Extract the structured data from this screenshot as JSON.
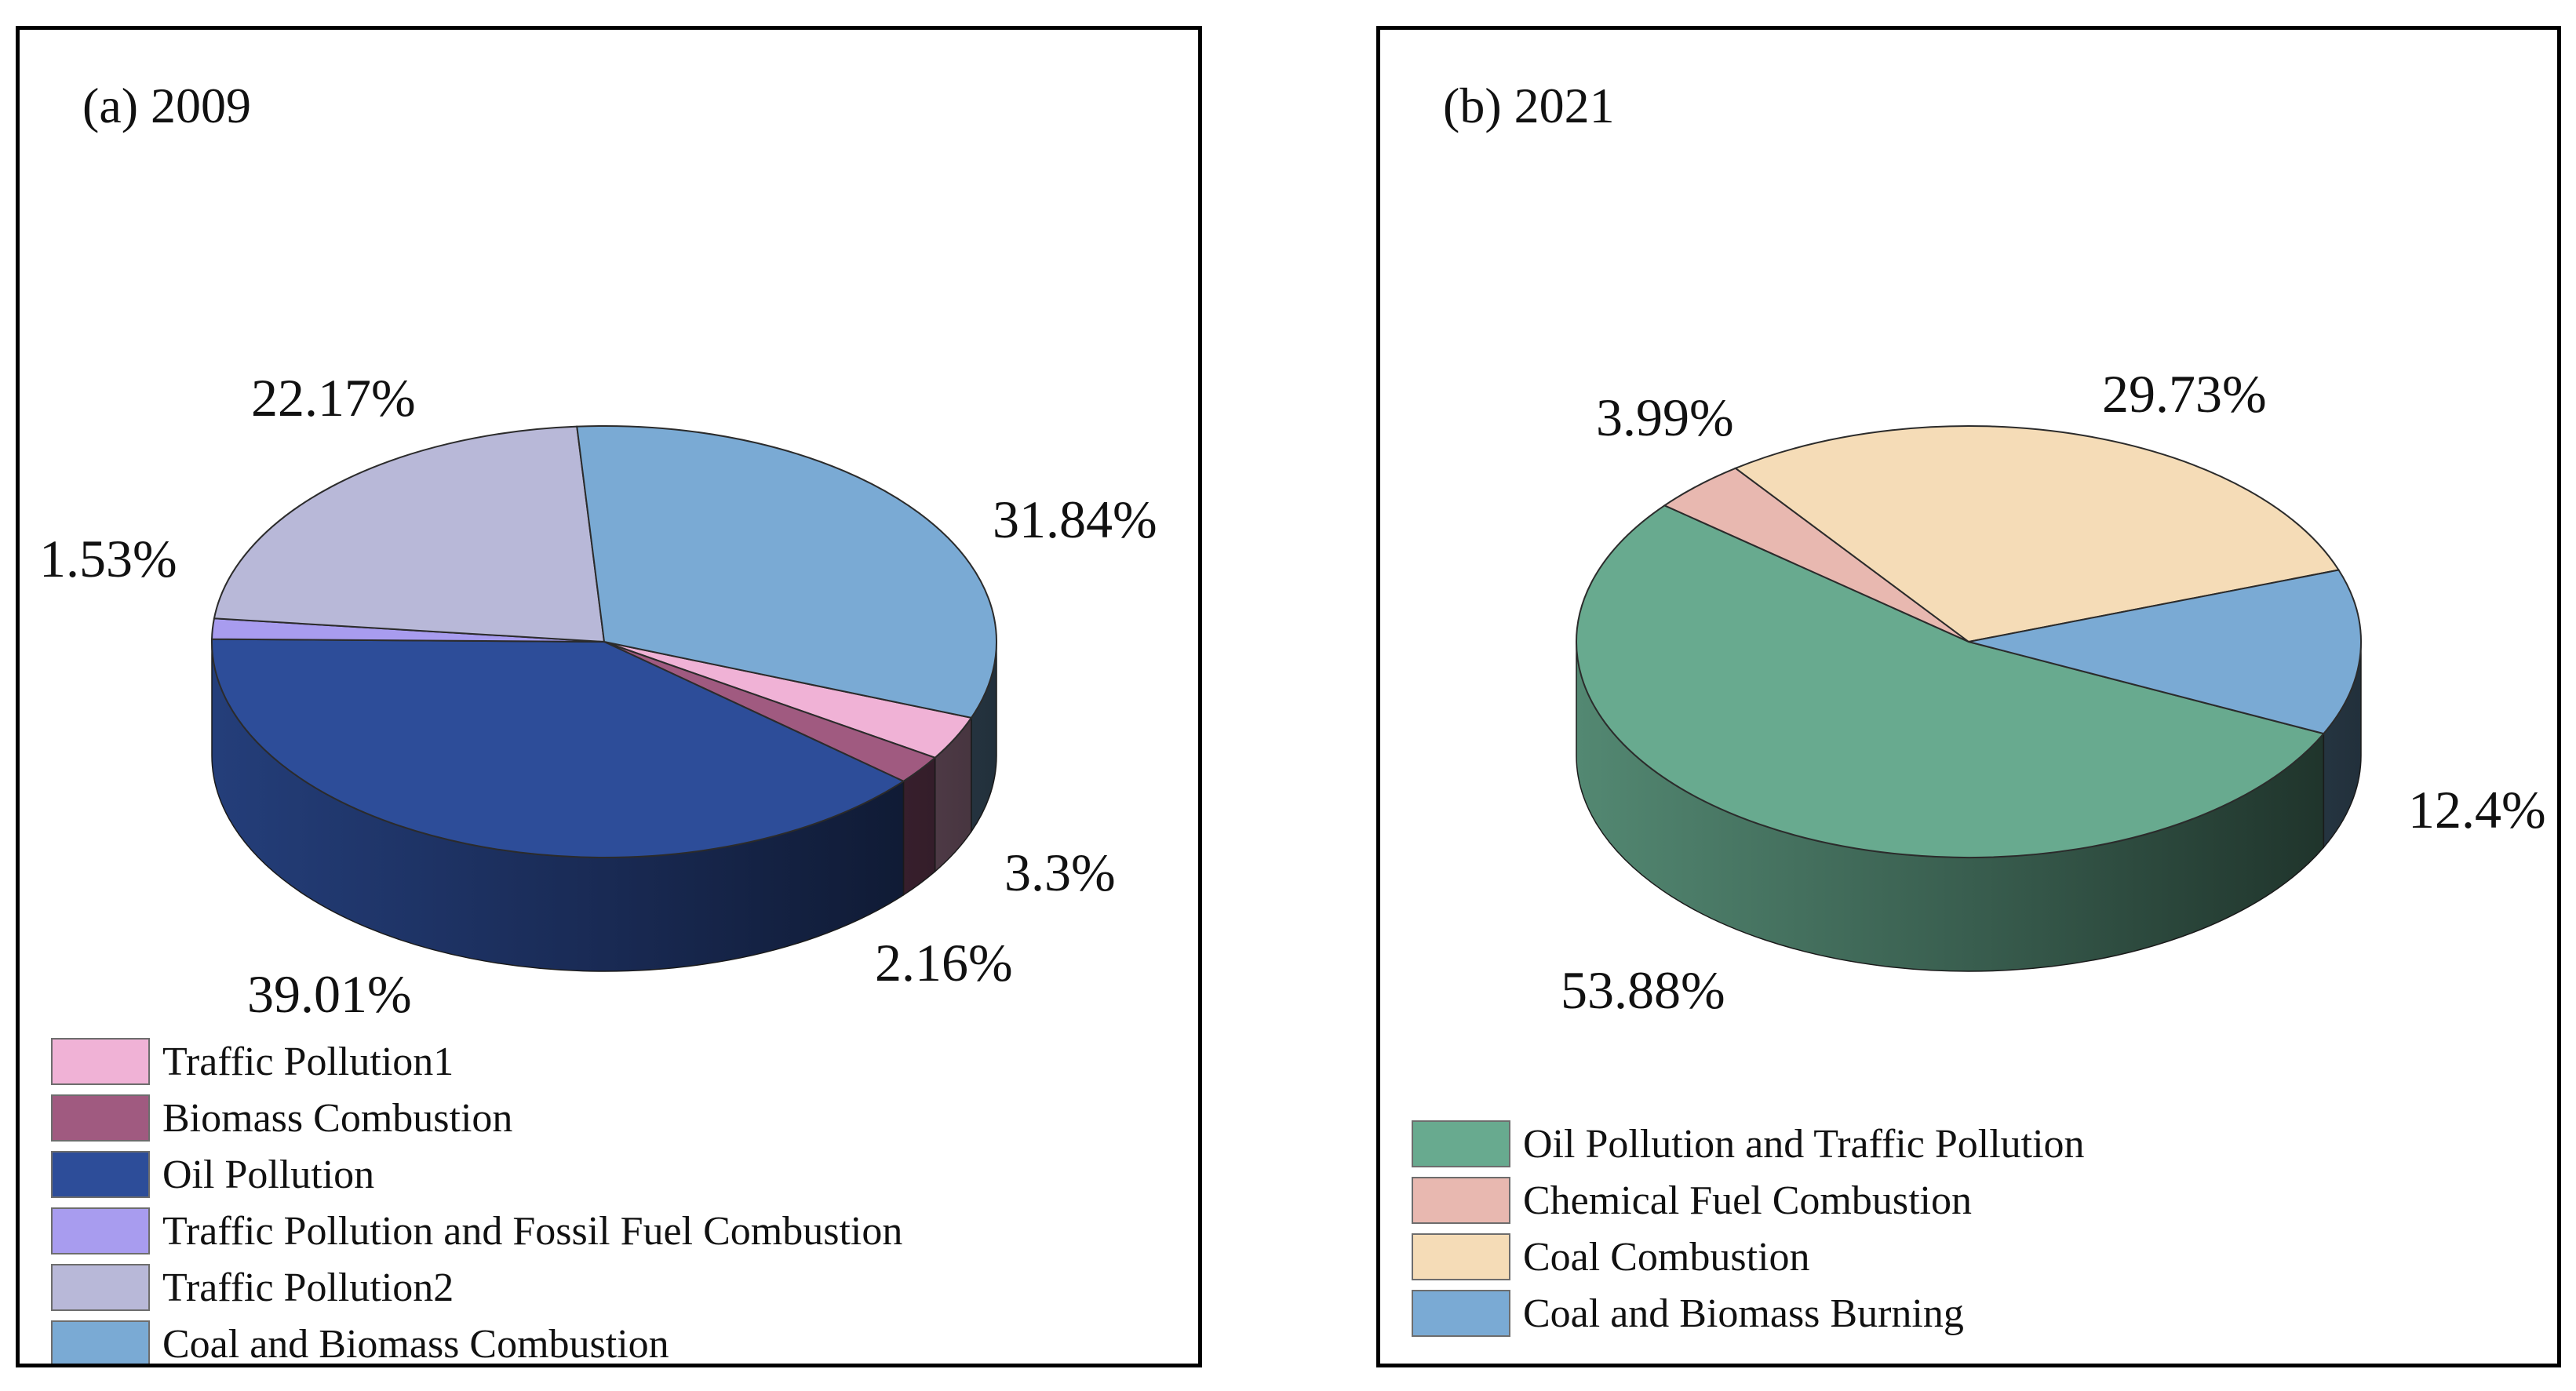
{
  "chart_data": [
    {
      "type": "pie",
      "title": "(a) 2009",
      "slices": [
        {
          "label": "Traffic Pollution1",
          "value": 3.3,
          "value_label": "3.3%",
          "color": "#f0b2d6"
        },
        {
          "label": "Biomass Combustion",
          "value": 2.16,
          "value_label": "2.16%",
          "color": "#a05a80"
        },
        {
          "label": "Oil Pollution",
          "value": 39.01,
          "value_label": "39.01%",
          "color": "#2d4d99"
        },
        {
          "label": "Traffic Pollution and Fossil Fuel Combustion",
          "value": 1.53,
          "value_label": "1.53%",
          "color": "#a89cef"
        },
        {
          "label": "Traffic Pollution2",
          "value": 22.17,
          "value_label": "22.17%",
          "color": "#b8b8d8"
        },
        {
          "label": "Coal and Biomass Combustion",
          "value": 31.84,
          "value_label": "31.84%",
          "color": "#7aaad4"
        }
      ],
      "legend": "bottom"
    },
    {
      "type": "pie",
      "title": "(b) 2021",
      "slices": [
        {
          "label": "Oil Pollution and Traffic Pollution",
          "value": 53.88,
          "value_label": "53.88%",
          "color": "#68aa8f"
        },
        {
          "label": "Chemical Fuel Combustion",
          "value": 3.99,
          "value_label": "3.99%",
          "color": "#e8b8b0"
        },
        {
          "label": "Coal Combustion",
          "value": 29.73,
          "value_label": "29.73%",
          "color": "#f5dcb7"
        },
        {
          "label": "Coal and Biomass Burning",
          "value": 12.4,
          "value_label": "12.4%",
          "color": "#7aaad4"
        }
      ],
      "legend": "bottom"
    }
  ]
}
